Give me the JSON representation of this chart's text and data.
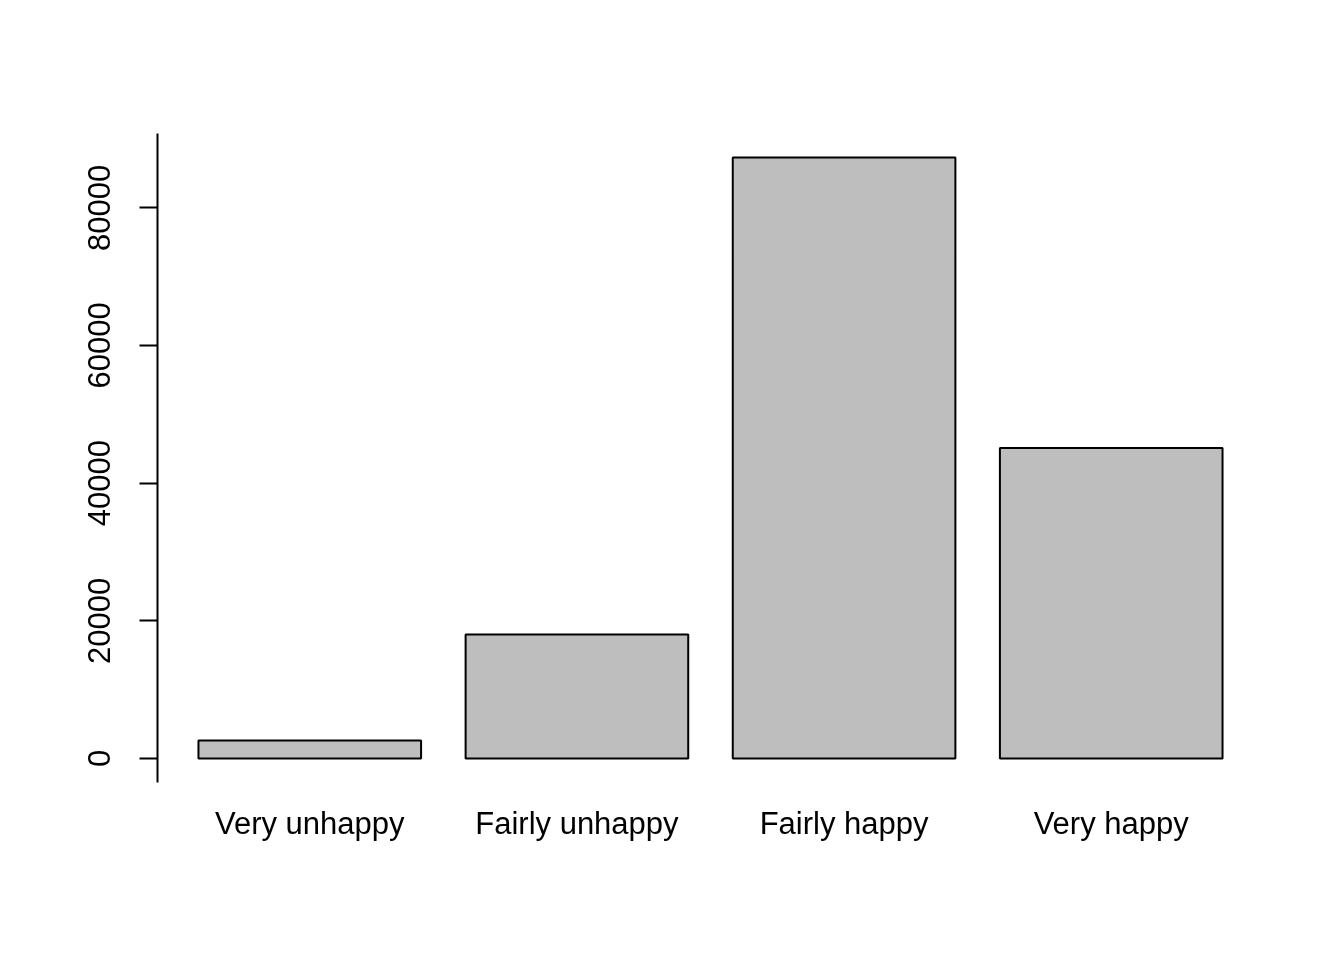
{
  "chart_data": {
    "type": "bar",
    "categories": [
      "Very unhappy",
      "Fairly unhappy",
      "Fairly happy",
      "Very happy"
    ],
    "values": [
      2600,
      18000,
      87300,
      45100
    ],
    "color": "#bebebe",
    "ylim": [
      -3500,
      90800
    ],
    "yticks": [
      0,
      20000,
      40000,
      60000,
      80000
    ],
    "grid": false
  }
}
